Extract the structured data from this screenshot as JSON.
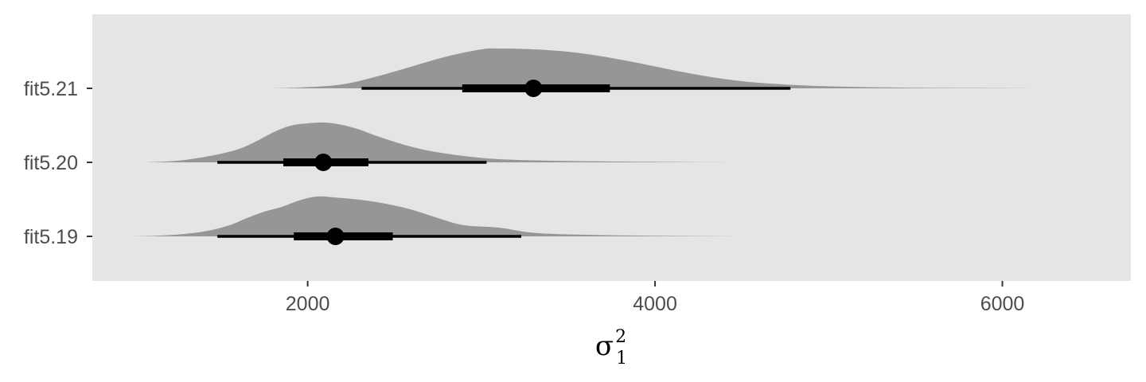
{
  "chart_data": {
    "type": "halfeye",
    "title": "",
    "xlabel": {
      "symbol": "σ",
      "superscript": "2",
      "subscript": "1"
    },
    "ylabel": "",
    "xlim": [
      760,
      6740
    ],
    "x_ticks": [
      2000,
      4000,
      6000
    ],
    "x_tick_labels": [
      "2000",
      "4000",
      "6000"
    ],
    "grid": false,
    "legend": "none",
    "colors": {
      "panel": "#e5e5e5",
      "density": "#969696",
      "interval": "#000000",
      "tick_text": "#4d4d4d"
    },
    "series": [
      {
        "name": "fit5.21",
        "point": 3300,
        "interval_66": [
          2890,
          3740
        ],
        "interval_95": [
          2310,
          4780
        ],
        "range": [
          1790,
          6420
        ],
        "density": [
          [
            1790,
            0
          ],
          [
            2000,
            0.03
          ],
          [
            2200,
            0.1
          ],
          [
            2400,
            0.3
          ],
          [
            2600,
            0.55
          ],
          [
            2800,
            0.8
          ],
          [
            3000,
            0.98
          ],
          [
            3100,
            1.0
          ],
          [
            3300,
            0.98
          ],
          [
            3500,
            0.92
          ],
          [
            3700,
            0.8
          ],
          [
            3900,
            0.64
          ],
          [
            4100,
            0.46
          ],
          [
            4300,
            0.3
          ],
          [
            4500,
            0.18
          ],
          [
            4700,
            0.11
          ],
          [
            5000,
            0.05
          ],
          [
            5500,
            0.015
          ],
          [
            6000,
            0.004
          ],
          [
            6420,
            0
          ]
        ]
      },
      {
        "name": "fit5.20",
        "point": 2090,
        "interval_66": [
          1860,
          2350
        ],
        "interval_95": [
          1480,
          3030
        ],
        "range": [
          1060,
          4520
        ],
        "density": [
          [
            1060,
            0
          ],
          [
            1250,
            0.04
          ],
          [
            1450,
            0.17
          ],
          [
            1600,
            0.33
          ],
          [
            1700,
            0.52
          ],
          [
            1800,
            0.75
          ],
          [
            1900,
            0.92
          ],
          [
            2000,
            0.98
          ],
          [
            2100,
            1.0
          ],
          [
            2200,
            0.94
          ],
          [
            2300,
            0.82
          ],
          [
            2400,
            0.66
          ],
          [
            2550,
            0.45
          ],
          [
            2700,
            0.29
          ],
          [
            2900,
            0.16
          ],
          [
            3100,
            0.08
          ],
          [
            3400,
            0.04
          ],
          [
            3800,
            0.02
          ],
          [
            4200,
            0.006
          ],
          [
            4520,
            0
          ]
        ]
      },
      {
        "name": "fit5.19",
        "point": 2160,
        "interval_66": [
          1920,
          2490
        ],
        "interval_95": [
          1480,
          3230
        ],
        "range": [
          990,
          4440
        ],
        "density": [
          [
            990,
            0
          ],
          [
            1200,
            0.03
          ],
          [
            1400,
            0.12
          ],
          [
            1550,
            0.28
          ],
          [
            1650,
            0.46
          ],
          [
            1750,
            0.62
          ],
          [
            1850,
            0.74
          ],
          [
            1950,
            0.9
          ],
          [
            2050,
            1.0
          ],
          [
            2150,
            0.98
          ],
          [
            2300,
            0.92
          ],
          [
            2450,
            0.82
          ],
          [
            2600,
            0.67
          ],
          [
            2750,
            0.46
          ],
          [
            2900,
            0.28
          ],
          [
            3100,
            0.22
          ],
          [
            3300,
            0.09
          ],
          [
            3600,
            0.04
          ],
          [
            4000,
            0.015
          ],
          [
            4440,
            0
          ]
        ]
      }
    ]
  }
}
